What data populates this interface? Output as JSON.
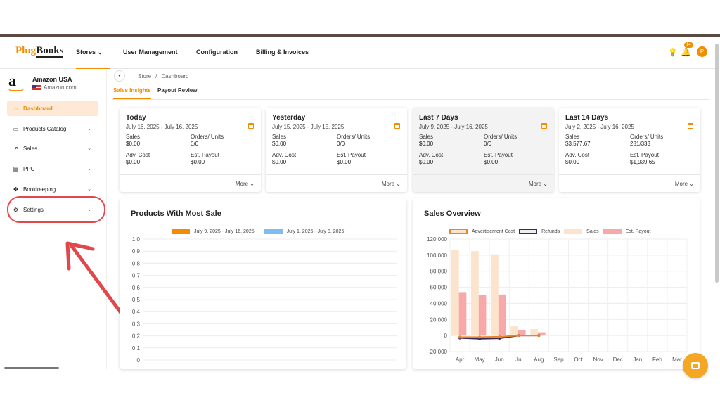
{
  "header": {
    "logo_part1": "Plug",
    "logo_part2": "Books",
    "nav": [
      "Stores",
      "User Management",
      "Configuration",
      "Billing & Invoices"
    ],
    "notification_count": "14",
    "avatar_initial": "P"
  },
  "store": {
    "logo_letter": "a",
    "name": "Amazon USA",
    "domain": "Amazon.com"
  },
  "sidebar": {
    "items": [
      {
        "label": "Dashboard",
        "icon": "home-icon"
      },
      {
        "label": "Products Catalog",
        "icon": "box-icon"
      },
      {
        "label": "Sales",
        "icon": "chart-icon"
      },
      {
        "label": "PPC",
        "icon": "ppc-icon"
      },
      {
        "label": "Bookkeeping",
        "icon": "book-icon"
      },
      {
        "label": "Settings",
        "icon": "gear-icon"
      }
    ]
  },
  "breadcrumb": {
    "root": "Store",
    "sep": "/",
    "current": "Dashboard"
  },
  "tabs": [
    "Sales Insights",
    "Payout Review"
  ],
  "cards": [
    {
      "title": "Today",
      "date": "July 16, 2025 - July 16, 2025",
      "sales_label": "Sales",
      "sales": "$0.00",
      "orders_label": "Orders/ Units",
      "orders": "0/0",
      "adv_label": "Adv. Cost",
      "adv": "$0.00",
      "payout_label": "Est. Payout",
      "payout": "$0.00",
      "more": "More"
    },
    {
      "title": "Yesterday",
      "date": "July 15, 2025 - July 15, 2025",
      "sales_label": "Sales",
      "sales": "$0.00",
      "orders_label": "Orders/ Units",
      "orders": "0/0",
      "adv_label": "Adv. Cost",
      "adv": "$0.00",
      "payout_label": "Est. Payout",
      "payout": "$0.00",
      "more": "More"
    },
    {
      "title": "Last 7 Days",
      "date": "July 9, 2025 - July 16, 2025",
      "sales_label": "Sales",
      "sales": "$0.00",
      "orders_label": "Orders/ Units",
      "orders": "0/0",
      "adv_label": "Adv. Cost",
      "adv": "$0.00",
      "payout_label": "Est. Payout",
      "payout": "$0.00",
      "more": "More"
    },
    {
      "title": "Last 14 Days",
      "date": "July 2, 2025 - July 16, 2025",
      "sales_label": "Sales",
      "sales": "$3,577.67",
      "orders_label": "Orders/ Units",
      "orders": "281/333",
      "adv_label": "Adv. Cost",
      "adv": "$0.00",
      "payout_label": "Est. Payout",
      "payout": "$1,939.65",
      "more": "More"
    }
  ],
  "panels": {
    "products_title": "Products With Most Sale",
    "sales_title": "Sales Overview"
  },
  "chart_data": [
    {
      "type": "bar",
      "title": "Products With Most Sale",
      "series": [
        {
          "name": "July 9, 2025 - July 16, 2025",
          "color": "#f28c00",
          "values": []
        },
        {
          "name": "July 1, 2025 - July 8, 2025",
          "color": "#7fbcf2",
          "values": []
        }
      ],
      "y_ticks": [
        "1.0",
        "0.9",
        "0.8",
        "0.7",
        "0.6",
        "0.5",
        "0.4",
        "0.3",
        "0.2",
        "0.1",
        "0"
      ],
      "ylim": [
        0,
        1.0
      ],
      "grid": true,
      "legend": "top-center"
    },
    {
      "type": "bar",
      "title": "Sales Overview",
      "categories": [
        "Apr",
        "May",
        "Jun",
        "Jul",
        "Aug",
        "Sep",
        "Oct",
        "Nov",
        "Dec",
        "Jan",
        "Feb",
        "Mar"
      ],
      "series": [
        {
          "name": "Advertisement Cost",
          "type": "line",
          "color": "#e8852a",
          "values": [
            -2000,
            -2000,
            -1500,
            0,
            0,
            null,
            null,
            null,
            null,
            null,
            null,
            null
          ]
        },
        {
          "name": "Refunds",
          "type": "line",
          "color": "#3d2a55",
          "values": [
            -3000,
            -4000,
            -3500,
            0,
            0,
            null,
            null,
            null,
            null,
            null,
            null,
            null
          ]
        },
        {
          "name": "Sales",
          "type": "bar",
          "color": "#fbe3cc",
          "values": [
            106000,
            105000,
            101000,
            12000,
            8000,
            0,
            0,
            0,
            0,
            0,
            0,
            0
          ]
        },
        {
          "name": "Est. Payout",
          "type": "bar",
          "color": "#f7a8a8",
          "values": [
            54000,
            50000,
            51000,
            7000,
            4000,
            0,
            0,
            0,
            0,
            0,
            0,
            0
          ]
        }
      ],
      "y_ticks": [
        "120,000",
        "100,000",
        "80,000",
        "60,000",
        "40,000",
        "20,000",
        "0",
        "-20,000"
      ],
      "ylim": [
        -20000,
        120000
      ],
      "grid": true,
      "legend": "top"
    }
  ]
}
